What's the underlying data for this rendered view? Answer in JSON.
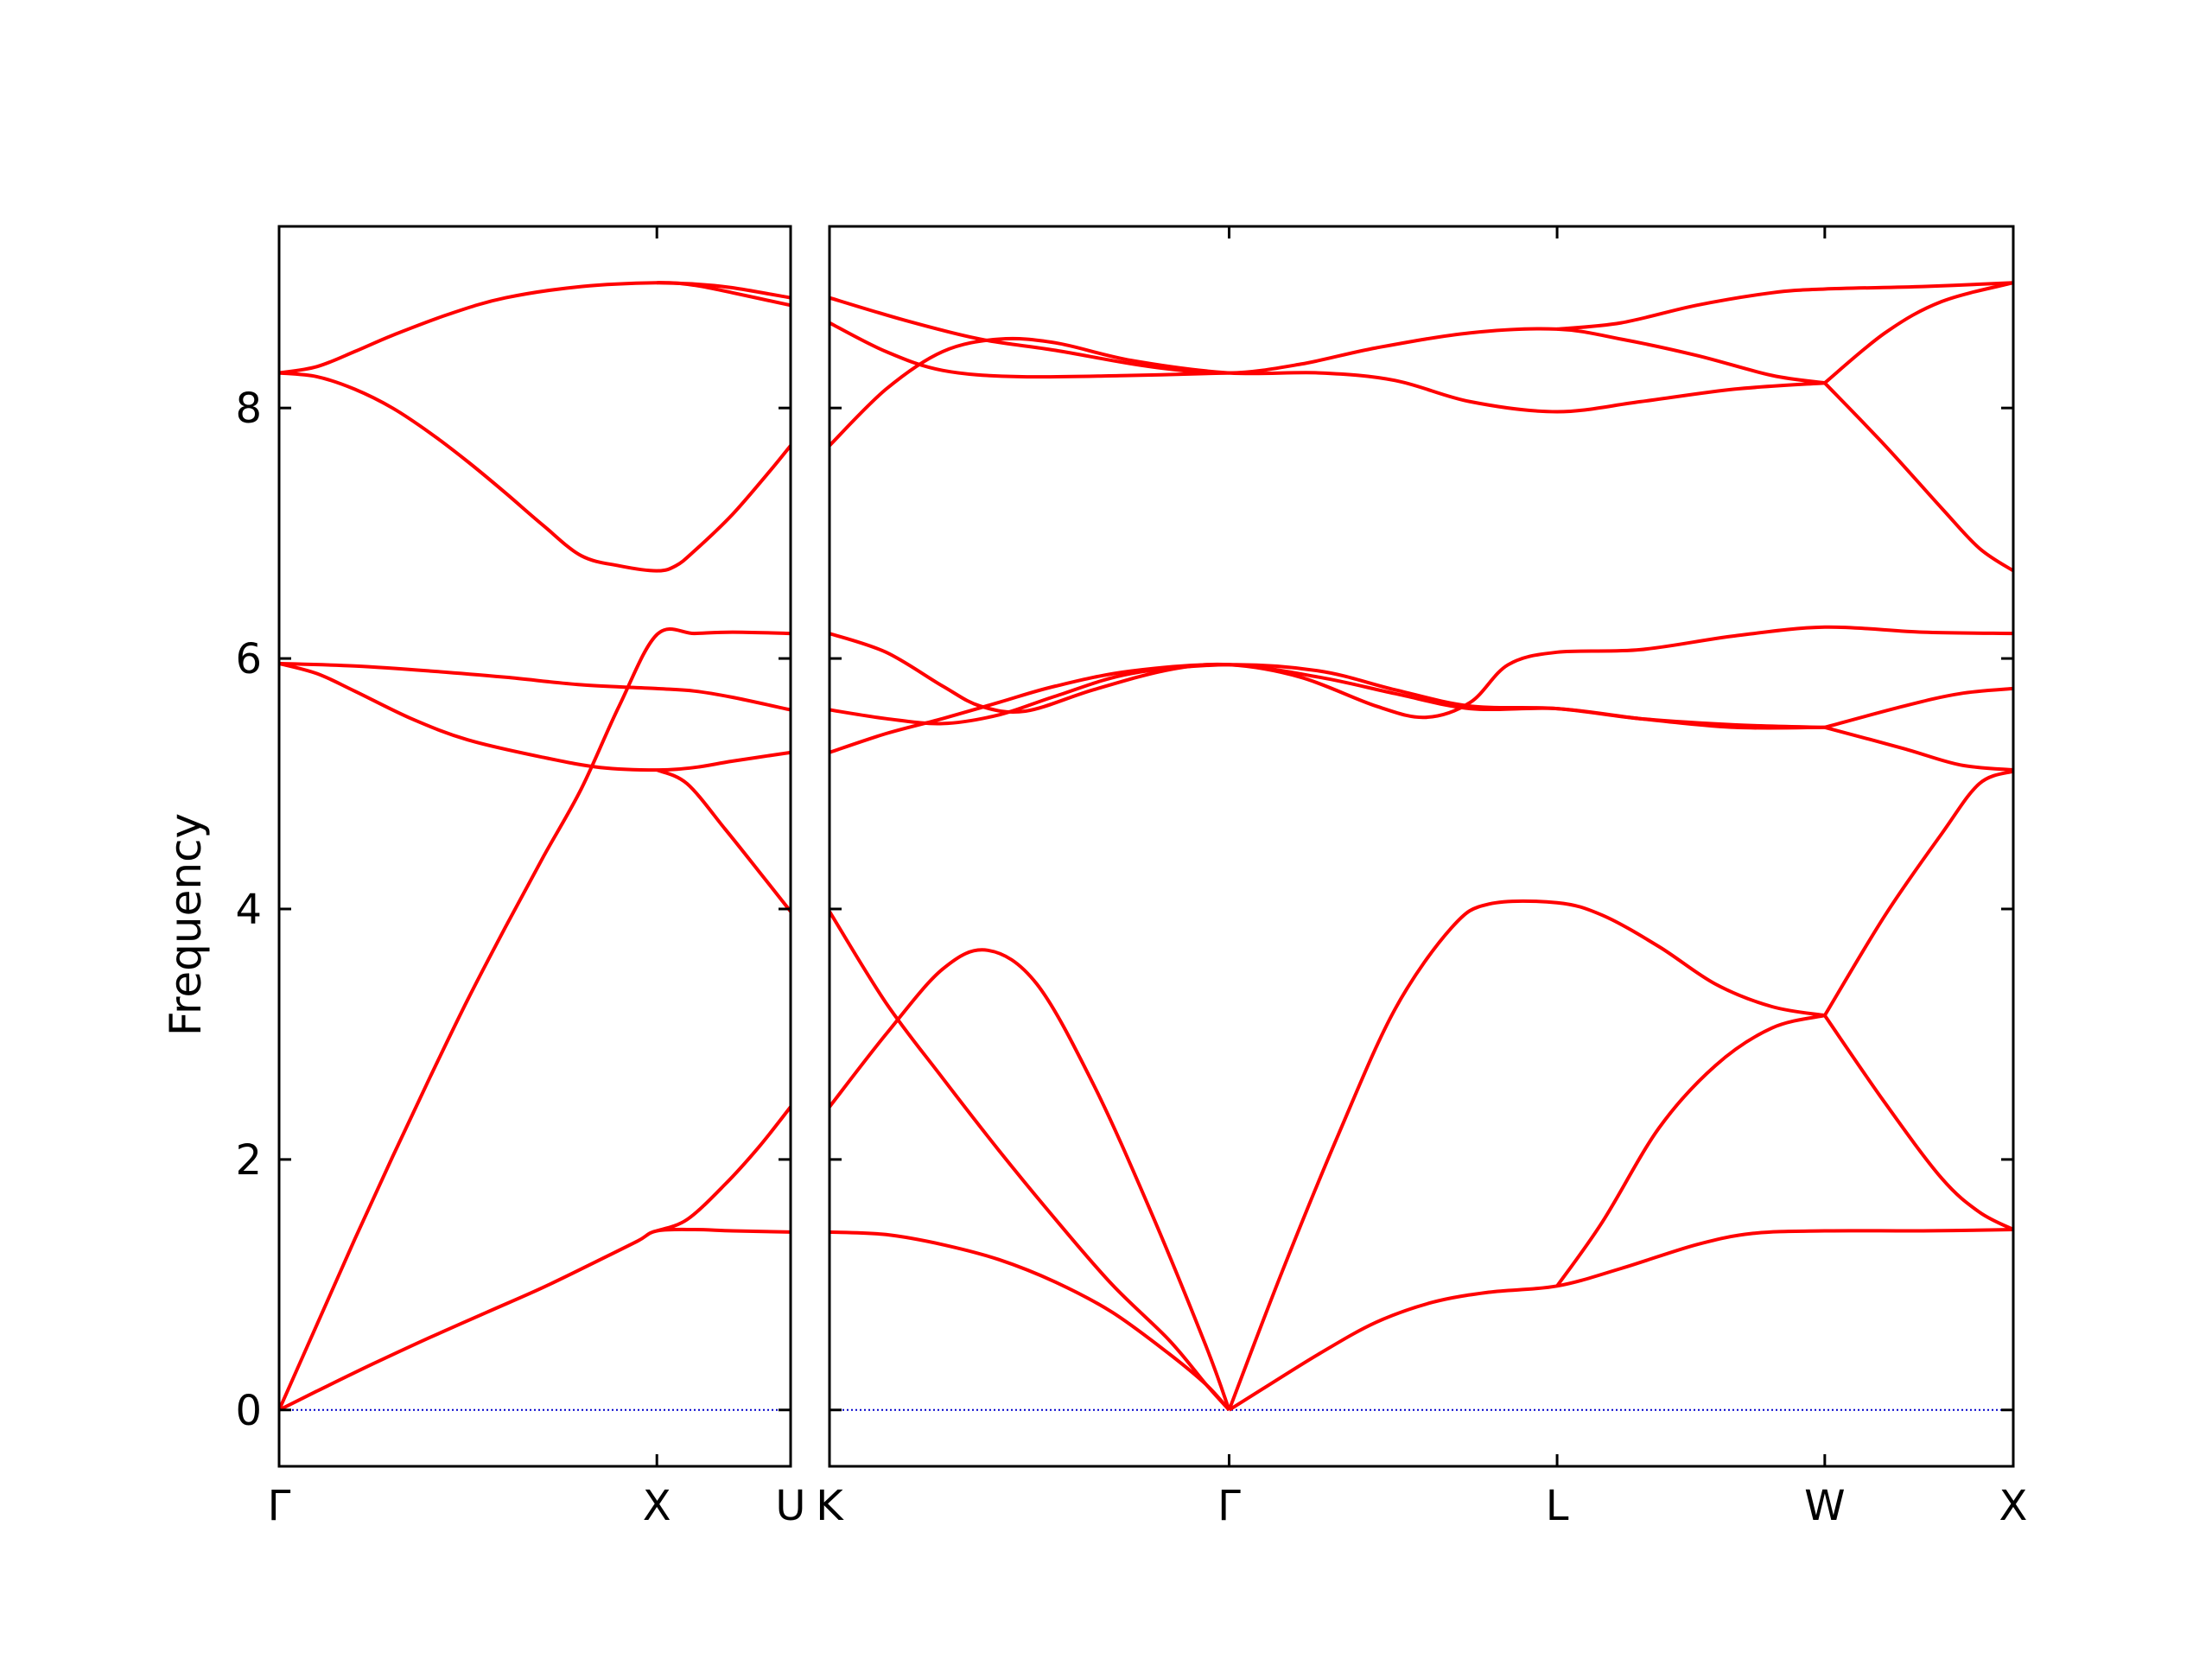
{
  "chart_data": {
    "type": "line",
    "title": "",
    "xlabel": "",
    "ylabel": "Frequency",
    "ylim": [
      -0.45,
      9.45
    ],
    "y_ticks": [
      0,
      2,
      4,
      6,
      8
    ],
    "grid": false,
    "legend": "none",
    "colors": {
      "band": "#ff0000",
      "zero_line": "#0000cc",
      "frame": "#000000"
    },
    "panels": [
      {
        "id": "left",
        "xlim": [
          0,
          1.354
        ],
        "tick_positions": [
          0,
          1.0,
          1.354
        ],
        "tick_labels": [
          "Γ",
          "X",
          "U"
        ],
        "bands": [
          [
            [
              0,
              0
            ],
            [
              0.1,
              0.15
            ],
            [
              0.25,
              0.37
            ],
            [
              0.4,
              0.58
            ],
            [
              0.55,
              0.78
            ],
            [
              0.7,
              0.98
            ],
            [
              0.85,
              1.2
            ],
            [
              0.95,
              1.35
            ],
            [
              1.0,
              1.43
            ],
            [
              1.1,
              1.44
            ],
            [
              1.2,
              1.43
            ],
            [
              1.354,
              1.42
            ]
          ],
          [
            [
              0,
              0
            ],
            [
              0.1,
              0.68
            ],
            [
              0.2,
              1.36
            ],
            [
              0.3,
              2.02
            ],
            [
              0.4,
              2.66
            ],
            [
              0.5,
              3.28
            ],
            [
              0.6,
              3.86
            ],
            [
              0.7,
              4.42
            ],
            [
              0.8,
              4.96
            ],
            [
              0.9,
              5.62
            ],
            [
              1.0,
              6.19
            ],
            [
              1.1,
              6.2
            ],
            [
              1.2,
              6.21
            ],
            [
              1.354,
              6.2
            ]
          ],
          [
            [
              1.0,
              1.43
            ],
            [
              1.08,
              1.52
            ],
            [
              1.18,
              1.8
            ],
            [
              1.27,
              2.1
            ],
            [
              1.354,
              2.42
            ]
          ],
          [
            [
              0,
              5.96
            ],
            [
              0.1,
              5.88
            ],
            [
              0.2,
              5.74
            ],
            [
              0.35,
              5.52
            ],
            [
              0.5,
              5.35
            ],
            [
              0.7,
              5.21
            ],
            [
              0.85,
              5.13
            ],
            [
              1.0,
              5.11
            ],
            [
              1.1,
              5.13
            ],
            [
              1.2,
              5.18
            ],
            [
              1.354,
              5.25
            ]
          ],
          [
            [
              1.0,
              5.11
            ],
            [
              1.08,
              5.0
            ],
            [
              1.18,
              4.64
            ],
            [
              1.27,
              4.3
            ],
            [
              1.354,
              3.98
            ]
          ],
          [
            [
              0,
              5.96
            ],
            [
              0.2,
              5.94
            ],
            [
              0.4,
              5.9
            ],
            [
              0.6,
              5.85
            ],
            [
              0.8,
              5.79
            ],
            [
              1.0,
              5.76
            ],
            [
              1.1,
              5.74
            ],
            [
              1.2,
              5.69
            ],
            [
              1.354,
              5.59
            ]
          ],
          [
            [
              0,
              8.28
            ],
            [
              0.1,
              8.25
            ],
            [
              0.2,
              8.15
            ],
            [
              0.3,
              8.0
            ],
            [
              0.4,
              7.8
            ],
            [
              0.5,
              7.57
            ],
            [
              0.6,
              7.32
            ],
            [
              0.7,
              7.06
            ],
            [
              0.8,
              6.82
            ],
            [
              0.9,
              6.74
            ],
            [
              1.0,
              6.7
            ],
            [
              1.05,
              6.74
            ],
            [
              1.1,
              6.86
            ],
            [
              1.2,
              7.15
            ],
            [
              1.3,
              7.5
            ],
            [
              1.354,
              7.7
            ]
          ],
          [
            [
              0,
              8.28
            ],
            [
              0.1,
              8.33
            ],
            [
              0.2,
              8.45
            ],
            [
              0.3,
              8.58
            ],
            [
              0.45,
              8.75
            ],
            [
              0.6,
              8.88
            ],
            [
              0.8,
              8.97
            ],
            [
              1.0,
              9.0
            ],
            [
              1.1,
              8.98
            ],
            [
              1.2,
              8.92
            ],
            [
              1.354,
              8.82
            ]
          ],
          [
            [
              1.0,
              9.0
            ],
            [
              1.1,
              8.99
            ],
            [
              1.2,
              8.96
            ],
            [
              1.354,
              8.88
            ]
          ]
        ]
      },
      {
        "id": "right",
        "xlim": [
          0,
          3.14
        ],
        "tick_positions": [
          0,
          1.06,
          1.93,
          2.64,
          3.14
        ],
        "tick_labels": [
          "K",
          "Γ",
          "L",
          "W",
          "X"
        ],
        "bands": [
          [
            [
              0,
              1.42
            ],
            [
              0.15,
              1.4
            ],
            [
              0.3,
              1.32
            ],
            [
              0.45,
              1.2
            ],
            [
              0.6,
              1.02
            ],
            [
              0.75,
              0.78
            ],
            [
              0.9,
              0.45
            ],
            [
              1.0,
              0.2
            ],
            [
              1.06,
              0.0
            ]
          ],
          [
            [
              1.06,
              0.0
            ],
            [
              1.15,
              0.17
            ],
            [
              1.3,
              0.45
            ],
            [
              1.45,
              0.7
            ],
            [
              1.6,
              0.86
            ],
            [
              1.75,
              0.94
            ],
            [
              1.93,
              0.99
            ],
            [
              2.1,
              1.13
            ],
            [
              2.3,
              1.32
            ],
            [
              2.45,
              1.41
            ],
            [
              2.64,
              1.43
            ],
            [
              2.9,
              1.43
            ],
            [
              3.14,
              1.44
            ]
          ],
          [
            [
              0,
              3.98
            ],
            [
              0.15,
              3.25
            ],
            [
              0.3,
              2.65
            ],
            [
              0.45,
              2.07
            ],
            [
              0.6,
              1.52
            ],
            [
              0.75,
              1.0
            ],
            [
              0.9,
              0.56
            ],
            [
              1.0,
              0.2
            ],
            [
              1.06,
              0.0
            ]
          ],
          [
            [
              0,
              2.42
            ],
            [
              0.15,
              3.0
            ],
            [
              0.3,
              3.52
            ],
            [
              0.42,
              3.67
            ],
            [
              0.55,
              3.4
            ],
            [
              0.7,
              2.6
            ],
            [
              0.85,
              1.6
            ],
            [
              1.0,
              0.5
            ],
            [
              1.06,
              0.0
            ]
          ],
          [
            [
              1.06,
              0.0
            ],
            [
              1.2,
              1.1
            ],
            [
              1.35,
              2.2
            ],
            [
              1.5,
              3.2
            ],
            [
              1.65,
              3.85
            ],
            [
              1.75,
              4.04
            ],
            [
              1.93,
              4.05
            ],
            [
              2.05,
              3.95
            ],
            [
              2.2,
              3.7
            ],
            [
              2.35,
              3.4
            ],
            [
              2.5,
              3.22
            ],
            [
              2.64,
              3.15
            ]
          ],
          [
            [
              1.93,
              0.99
            ],
            [
              2.05,
              1.5
            ],
            [
              2.2,
              2.25
            ],
            [
              2.35,
              2.75
            ],
            [
              2.5,
              3.05
            ],
            [
              2.64,
              3.15
            ]
          ],
          [
            [
              2.64,
              3.15
            ],
            [
              2.8,
              2.45
            ],
            [
              2.95,
              1.85
            ],
            [
              3.05,
              1.58
            ],
            [
              3.14,
              1.44
            ]
          ],
          [
            [
              2.64,
              3.15
            ],
            [
              2.8,
              3.95
            ],
            [
              2.95,
              4.6
            ],
            [
              3.05,
              5.0
            ],
            [
              3.14,
              5.1
            ]
          ],
          [
            [
              0,
              5.25
            ],
            [
              0.15,
              5.4
            ],
            [
              0.3,
              5.52
            ],
            [
              0.45,
              5.65
            ],
            [
              0.6,
              5.78
            ],
            [
              0.8,
              5.9
            ],
            [
              1.06,
              5.95
            ],
            [
              1.3,
              5.85
            ],
            [
              1.5,
              5.72
            ],
            [
              1.7,
              5.6
            ],
            [
              1.93,
              5.6
            ],
            [
              2.15,
              5.52
            ],
            [
              2.4,
              5.45
            ],
            [
              2.64,
              5.45
            ]
          ],
          [
            [
              0,
              5.59
            ],
            [
              0.15,
              5.52
            ],
            [
              0.3,
              5.48
            ],
            [
              0.45,
              5.55
            ],
            [
              0.6,
              5.7
            ],
            [
              0.8,
              5.88
            ],
            [
              1.06,
              5.95
            ],
            [
              1.3,
              5.9
            ],
            [
              1.5,
              5.75
            ],
            [
              1.7,
              5.62
            ],
            [
              1.93,
              5.6
            ],
            [
              2.15,
              5.52
            ],
            [
              2.4,
              5.47
            ],
            [
              2.64,
              5.45
            ]
          ],
          [
            [
              0,
              6.2
            ],
            [
              0.15,
              6.05
            ],
            [
              0.3,
              5.78
            ],
            [
              0.4,
              5.62
            ],
            [
              0.52,
              5.58
            ],
            [
              0.7,
              5.75
            ],
            [
              0.9,
              5.91
            ],
            [
              1.06,
              5.95
            ],
            [
              1.25,
              5.85
            ],
            [
              1.45,
              5.62
            ],
            [
              1.58,
              5.53
            ],
            [
              1.7,
              5.65
            ],
            [
              1.8,
              5.95
            ],
            [
              1.93,
              6.05
            ],
            [
              2.15,
              6.07
            ],
            [
              2.4,
              6.18
            ],
            [
              2.64,
              6.25
            ],
            [
              2.9,
              6.21
            ],
            [
              3.14,
              6.2
            ]
          ],
          [
            [
              2.64,
              5.45
            ],
            [
              2.85,
              5.28
            ],
            [
              3.0,
              5.15
            ],
            [
              3.14,
              5.11
            ]
          ],
          [
            [
              2.64,
              5.45
            ],
            [
              2.85,
              5.62
            ],
            [
              3.0,
              5.72
            ],
            [
              3.14,
              5.76
            ]
          ],
          [
            [
              0,
              7.7
            ],
            [
              0.15,
              8.15
            ],
            [
              0.3,
              8.45
            ],
            [
              0.45,
              8.55
            ],
            [
              0.6,
              8.52
            ],
            [
              0.8,
              8.38
            ],
            [
              1.06,
              8.28
            ],
            [
              1.3,
              8.28
            ],
            [
              1.5,
              8.22
            ],
            [
              1.7,
              8.05
            ],
            [
              1.93,
              7.97
            ],
            [
              2.15,
              8.05
            ],
            [
              2.4,
              8.15
            ],
            [
              2.64,
              8.2
            ]
          ],
          [
            [
              0,
              8.68
            ],
            [
              0.15,
              8.45
            ],
            [
              0.3,
              8.3
            ],
            [
              0.5,
              8.25
            ],
            [
              0.8,
              8.26
            ],
            [
              1.06,
              8.28
            ]
          ],
          [
            [
              0,
              8.88
            ],
            [
              0.2,
              8.7
            ],
            [
              0.4,
              8.55
            ],
            [
              0.6,
              8.46
            ],
            [
              0.85,
              8.33
            ],
            [
              1.06,
              8.28
            ],
            [
              1.25,
              8.35
            ],
            [
              1.45,
              8.48
            ],
            [
              1.7,
              8.6
            ],
            [
              1.93,
              8.63
            ],
            [
              2.1,
              8.55
            ],
            [
              2.3,
              8.42
            ],
            [
              2.5,
              8.26
            ],
            [
              2.64,
              8.2
            ]
          ],
          [
            [
              1.93,
              8.63
            ],
            [
              2.1,
              8.68
            ],
            [
              2.3,
              8.82
            ],
            [
              2.5,
              8.92
            ],
            [
              2.64,
              8.95
            ],
            [
              2.9,
              8.97
            ],
            [
              3.14,
              9.0
            ]
          ],
          [
            [
              2.64,
              8.2
            ],
            [
              2.8,
              8.6
            ],
            [
              2.95,
              8.85
            ],
            [
              3.14,
              9.0
            ]
          ],
          [
            [
              2.64,
              8.2
            ],
            [
              2.8,
              7.7
            ],
            [
              2.95,
              7.2
            ],
            [
              3.05,
              6.88
            ],
            [
              3.14,
              6.7
            ]
          ]
        ]
      }
    ]
  }
}
